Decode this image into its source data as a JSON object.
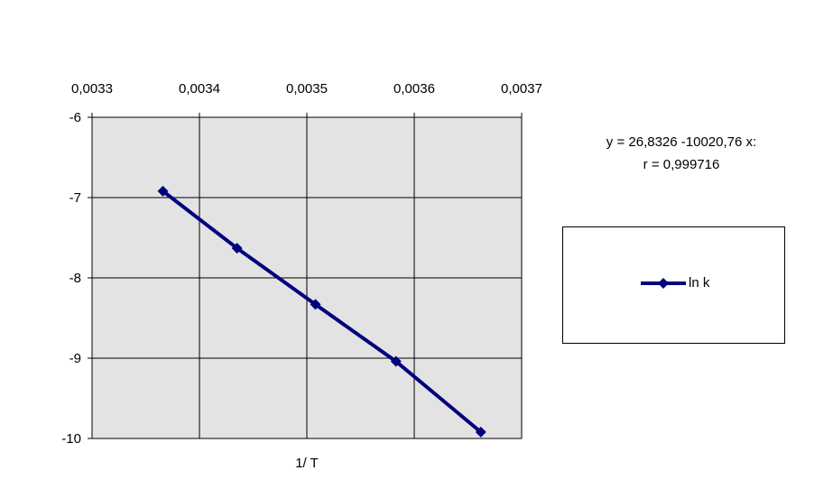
{
  "chart_data": {
    "type": "line",
    "xlabel": "1/ T",
    "ylabel": "",
    "xlim": [
      0.0033,
      0.0037
    ],
    "ylim": [
      -10,
      -6
    ],
    "x_axis_position": "top",
    "x_tick_labels": [
      "0,0033",
      "0,0034",
      "0,0035",
      "0,0036",
      "0,0037"
    ],
    "y_tick_labels": [
      "-6",
      "-7",
      "-8",
      "-9",
      "-10"
    ],
    "x_ticks": [
      0.0033,
      0.0034,
      0.0035,
      0.0036,
      0.0037
    ],
    "y_ticks": [
      -6,
      -7,
      -8,
      -9,
      -10
    ],
    "grid": true,
    "plot_background": "#e3e3e3",
    "series": [
      {
        "name": "ln k",
        "color": "#000080",
        "marker": "diamond",
        "x": [
          0.003366,
          0.003435,
          0.003508,
          0.003583,
          0.003662
        ],
        "y": [
          -6.92,
          -7.63,
          -8.33,
          -9.04,
          -9.92
        ]
      }
    ],
    "annotations": {
      "equation": "y = 26,8326 -10020,76 x:",
      "correlation": "r  =  0,999716"
    },
    "legend_position": "right"
  }
}
